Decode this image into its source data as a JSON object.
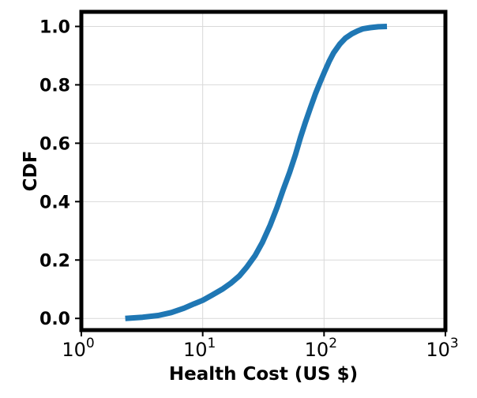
{
  "chart_data": {
    "type": "line",
    "title": "",
    "xlabel": "Health Cost (US $)",
    "ylabel": "CDF",
    "xscale": "log",
    "xlim": [
      1,
      1000
    ],
    "ylim": [
      -0.04,
      1.05
    ],
    "xticks": [
      {
        "value": 1,
        "base": "10",
        "exp": "0"
      },
      {
        "value": 10,
        "base": "10",
        "exp": "1"
      },
      {
        "value": 100,
        "base": "10",
        "exp": "2"
      },
      {
        "value": 1000,
        "base": "10",
        "exp": "3"
      }
    ],
    "yticks": [
      {
        "value": 0.0,
        "label": "0.0"
      },
      {
        "value": 0.2,
        "label": "0.2"
      },
      {
        "value": 0.4,
        "label": "0.4"
      },
      {
        "value": 0.6,
        "label": "0.6"
      },
      {
        "value": 0.8,
        "label": "0.8"
      },
      {
        "value": 1.0,
        "label": "1.0"
      }
    ],
    "grid": true,
    "series": [
      {
        "color": "#1f77b4",
        "x": [
          2.3,
          3.2,
          4.3,
          5.5,
          7.0,
          8.5,
          10.0,
          12.0,
          14.5,
          17.0,
          20.0,
          23.0,
          27.0,
          31.0,
          36.0,
          41.0,
          46.0,
          52.0,
          58.0,
          64.0,
          70.0,
          77.0,
          85.0,
          93.0,
          101.0,
          110.0,
          120.0,
          135.0,
          150.0,
          170.0,
          190.0,
          210.0,
          240.0,
          280.0,
          330.0
        ],
        "y": [
          0.0,
          0.004,
          0.01,
          0.02,
          0.035,
          0.05,
          0.062,
          0.08,
          0.1,
          0.12,
          0.145,
          0.175,
          0.215,
          0.26,
          0.32,
          0.38,
          0.44,
          0.5,
          0.56,
          0.62,
          0.67,
          0.72,
          0.77,
          0.81,
          0.845,
          0.88,
          0.91,
          0.94,
          0.96,
          0.975,
          0.985,
          0.992,
          0.996,
          0.999,
          1.0
        ]
      }
    ]
  }
}
